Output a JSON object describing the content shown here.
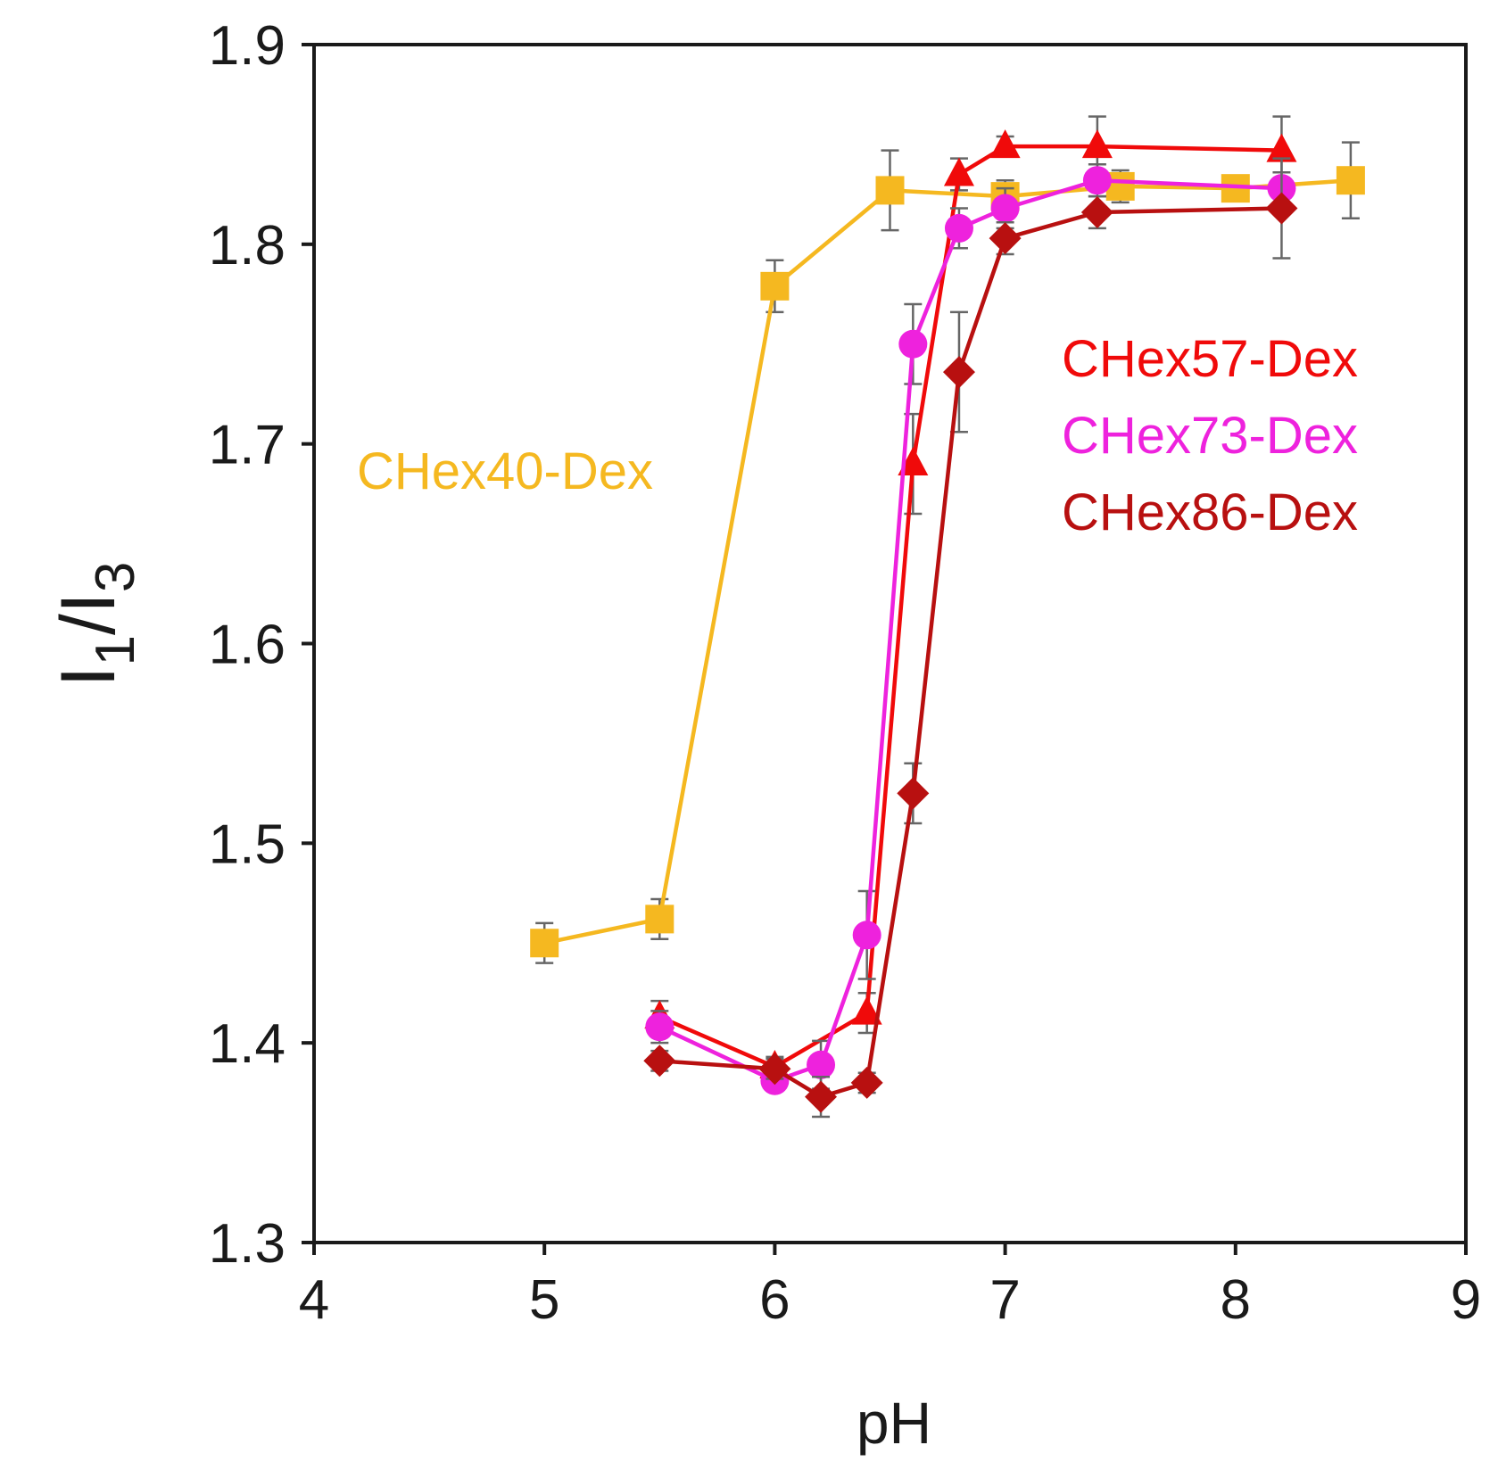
{
  "chart_data": {
    "type": "line",
    "xlabel": "pH",
    "ylabel": {
      "main": "I",
      "sub1": "1",
      "slash": "/",
      "sub2": "3"
    },
    "xlim": [
      4,
      9
    ],
    "ylim": [
      1.3,
      1.9
    ],
    "xticks": [
      4,
      5,
      6,
      7,
      8,
      9
    ],
    "yticks": [
      1.3,
      1.4,
      1.5,
      1.6,
      1.7,
      1.8,
      1.9
    ],
    "xtick_labels": [
      "4",
      "5",
      "6",
      "7",
      "8",
      "9"
    ],
    "ytick_labels": [
      "1.3",
      "1.4",
      "1.5",
      "1.6",
      "1.7",
      "1.8",
      "1.9"
    ],
    "grid": false,
    "legend_placement": "inline labels",
    "series": [
      {
        "name": "CHex40-Dex",
        "color": "#F5B820",
        "marker": "square",
        "x": [
          5.0,
          5.5,
          6.0,
          6.5,
          7.0,
          7.5,
          8.0,
          8.5
        ],
        "y": [
          1.45,
          1.462,
          1.779,
          1.827,
          1.824,
          1.829,
          1.828,
          1.832
        ],
        "err": [
          0.01,
          0.01,
          0.013,
          0.02,
          0.008,
          0.008,
          0.006,
          0.019
        ]
      },
      {
        "name": "CHex57-Dex",
        "color": "#F00A0A",
        "marker": "triangle",
        "x": [
          5.5,
          6.0,
          6.4,
          6.6,
          6.8,
          7.0,
          7.4,
          8.2
        ],
        "y": [
          1.413,
          1.388,
          1.415,
          1.69,
          1.835,
          1.849,
          1.849,
          1.847
        ],
        "err": [
          0.008,
          0.005,
          0.01,
          0.025,
          0.008,
          0.005,
          0.015,
          0.017
        ]
      },
      {
        "name": "CHex73-Dex",
        "color": "#EE22DD",
        "marker": "circle",
        "x": [
          5.5,
          6.0,
          6.2,
          6.4,
          6.6,
          6.8,
          7.0,
          7.4,
          8.2
        ],
        "y": [
          1.408,
          1.381,
          1.389,
          1.454,
          1.75,
          1.808,
          1.818,
          1.832,
          1.828
        ],
        "err": [
          0.008,
          0.005,
          0.012,
          0.022,
          0.02,
          0.01,
          0.01,
          0.008,
          0.008
        ]
      },
      {
        "name": "CHex86-Dex",
        "color": "#B81010",
        "marker": "diamond",
        "x": [
          5.5,
          6.0,
          6.2,
          6.4,
          6.6,
          6.8,
          7.0,
          7.4,
          8.2
        ],
        "y": [
          1.391,
          1.387,
          1.373,
          1.38,
          1.525,
          1.736,
          1.803,
          1.816,
          1.818
        ],
        "err": [
          0.005,
          0.005,
          0.01,
          0.005,
          0.015,
          0.03,
          0.008,
          0.008,
          0.025
        ]
      }
    ],
    "labels": [
      {
        "text": "CHex40-Dex",
        "color": "#F5B820"
      },
      {
        "text": "CHex57-Dex",
        "color": "#F00A0A"
      },
      {
        "text": "CHex73-Dex",
        "color": "#EE22DD"
      },
      {
        "text": "CHex86-Dex",
        "color": "#B81010"
      }
    ]
  }
}
